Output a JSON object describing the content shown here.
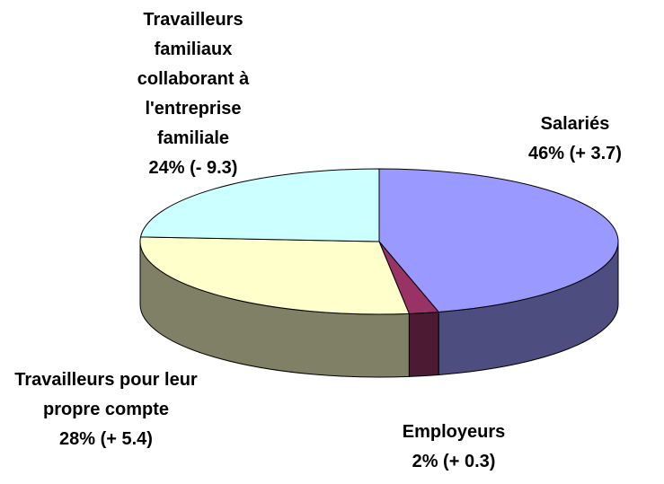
{
  "chart_data": {
    "type": "pie",
    "categories": [
      "Salariés",
      "Employeurs",
      "Travailleurs pour leur propre compte",
      "Travailleurs familiaux collaborant à l'entreprise familiale"
    ],
    "values": [
      46,
      2,
      28,
      24
    ],
    "value_labels": [
      "46%",
      "2%",
      "28%",
      "24%"
    ],
    "changes": [
      "(+ 3.7)",
      "(+ 0.3)",
      "(+ 5.4)",
      "(- 9.3)"
    ],
    "colors": [
      "#9999ff",
      "#993366",
      "#ffffcc",
      "#ccffff"
    ],
    "side_colors": [
      "#4d4d80",
      "#4d1a33",
      "#808066",
      "#668080"
    ]
  }
}
